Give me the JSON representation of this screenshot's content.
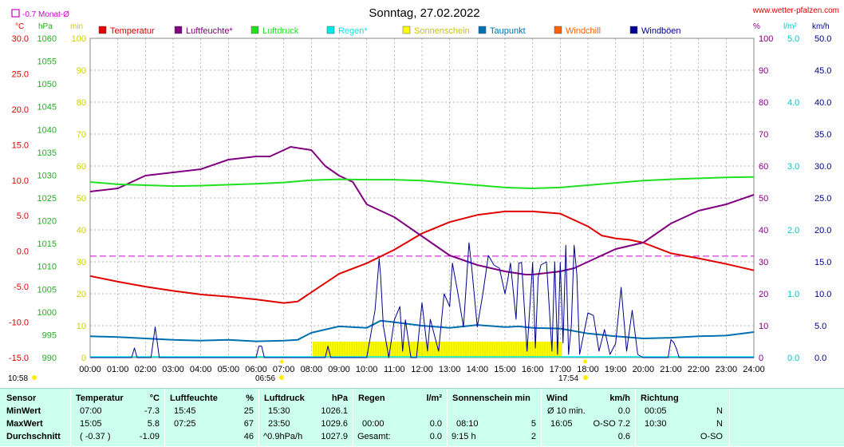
{
  "header": {
    "title": "Sonntag, 27.02.2022",
    "site": "www.wetter-pfalzen.com",
    "month_label": "-0.7 Monat-Ø"
  },
  "units": {
    "celsius": "°C",
    "hpa": "hPa",
    "min": "min",
    "percent": "%",
    "lm2": "l/m²",
    "kmh": "km/h"
  },
  "legend": [
    {
      "label": "Temperatur",
      "color": "#e00000"
    },
    {
      "label": "Luftfeuchte*",
      "color": "#800080"
    },
    {
      "label": "Luftdruck",
      "color": "#20e020"
    },
    {
      "label": "Regen*",
      "color": "#00e8e8"
    },
    {
      "label": "Sonnenschein",
      "color": "#ffff00"
    },
    {
      "label": "Taupunkt",
      "color": "#0070b0"
    },
    {
      "label": "Windchill",
      "color": "#ff6000"
    },
    {
      "label": "Windböen",
      "color": "#000090"
    }
  ],
  "axes": {
    "temp_ticks": [
      "30.0",
      "25.0",
      "20.0",
      "15.0",
      "10.0",
      "5.0",
      "0.0",
      "-5.0",
      "-10.0",
      "-15.0"
    ],
    "press_ticks": [
      "1060",
      "1055",
      "1050",
      "1045",
      "1040",
      "1035",
      "1030",
      "1025",
      "1020",
      "1015",
      "1010",
      "1005",
      "1000",
      "995",
      "990"
    ],
    "sun_ticks": [
      "100",
      "90",
      "80",
      "70",
      "60",
      "50",
      "40",
      "30",
      "20",
      "10",
      "0"
    ],
    "hum_ticks": [
      "100",
      "90",
      "80",
      "70",
      "60",
      "50",
      "40",
      "30",
      "20",
      "10",
      "0"
    ],
    "rain_ticks": [
      "5.0",
      "4.0",
      "3.0",
      "2.0",
      "1.0",
      "0.0"
    ],
    "wind_ticks": [
      "50.0",
      "45.0",
      "40.0",
      "35.0",
      "30.0",
      "25.0",
      "20.0",
      "15.0",
      "10.0",
      "5.0",
      "0.0"
    ],
    "x_ticks": [
      "00:00",
      "01:00",
      "02:00",
      "03:00",
      "04:00",
      "05:00",
      "06:00",
      "07:00",
      "08:00",
      "09:00",
      "10:00",
      "11:00",
      "12:00",
      "13:00",
      "14:00",
      "15:00",
      "16:00",
      "17:00",
      "18:00",
      "19:00",
      "20:00",
      "21:00",
      "22:00",
      "23:00",
      "24:00"
    ]
  },
  "markers": {
    "daylength": "10:58",
    "sunrise": "06:56",
    "sunset": "17:54"
  },
  "chart_data": {
    "type": "line",
    "title": "Sonntag, 27.02.2022",
    "x_range": [
      0,
      24
    ],
    "grid": true,
    "legend_position": "top",
    "month_avg_temp": -0.7,
    "series": [
      {
        "name": "Temperatur",
        "axis": "temp",
        "color": "#e00000",
        "x": [
          0,
          1,
          2,
          3,
          4,
          5,
          6,
          7,
          7.5,
          8,
          9,
          10,
          11,
          12,
          13,
          14,
          15,
          16,
          17,
          18,
          18.5,
          19,
          19.5,
          20,
          21,
          22,
          23,
          24
        ],
        "values": [
          -3.5,
          -4.3,
          -5.0,
          -5.6,
          -6.1,
          -6.4,
          -6.8,
          -7.3,
          -7.1,
          -5.8,
          -3.2,
          -1.7,
          0.2,
          2.5,
          4.1,
          5.1,
          5.6,
          5.6,
          5.3,
          3.5,
          2.2,
          1.8,
          1.6,
          1.2,
          -0.3,
          -1.0,
          -1.8,
          -2.7
        ]
      },
      {
        "name": "Luftfeuchte*",
        "axis": "hum",
        "color": "#800080",
        "x": [
          0,
          1,
          2,
          3,
          4,
          5,
          6,
          6.5,
          7,
          7.25,
          8,
          8.5,
          9,
          9.5,
          10,
          11,
          12,
          13,
          14,
          15,
          15.75,
          16,
          17,
          17.5,
          18,
          19,
          20,
          21,
          22,
          23,
          24
        ],
        "values": [
          52,
          53,
          57,
          58,
          59,
          62,
          63,
          63,
          65,
          66,
          65,
          60,
          57,
          55,
          48,
          44,
          38,
          32,
          29,
          27,
          26,
          26,
          27,
          28,
          30,
          34,
          36,
          42,
          46,
          48,
          51
        ]
      },
      {
        "name": "Luftdruck",
        "axis": "press",
        "color": "#20e020",
        "x": [
          0,
          1,
          2,
          3,
          4,
          5,
          6,
          7,
          8,
          9,
          10,
          11,
          12,
          13,
          14,
          15,
          16,
          17,
          18,
          19,
          20,
          21,
          22,
          23,
          23.83,
          24
        ],
        "values": [
          1028.5,
          1028.0,
          1027.8,
          1027.6,
          1027.7,
          1027.9,
          1028.1,
          1028.4,
          1028.9,
          1029.1,
          1029.0,
          1029.0,
          1028.8,
          1028.3,
          1027.8,
          1027.3,
          1027.1,
          1027.3,
          1027.8,
          1028.3,
          1028.8,
          1029.1,
          1029.3,
          1029.5,
          1029.6,
          1029.6
        ]
      },
      {
        "name": "Taupunkt",
        "axis": "temp",
        "color": "#0070b0",
        "x": [
          0,
          1,
          2,
          3,
          4,
          5,
          6,
          7,
          7.5,
          8,
          9,
          10,
          10.5,
          11,
          12,
          13,
          14,
          15,
          15.5,
          16,
          17,
          18,
          19,
          20,
          21,
          22,
          23,
          24
        ],
        "values": [
          -12.0,
          -12.1,
          -12.3,
          -12.5,
          -12.6,
          -12.5,
          -12.7,
          -12.6,
          -12.5,
          -11.5,
          -10.6,
          -10.8,
          -9.8,
          -10.0,
          -10.5,
          -10.8,
          -10.4,
          -10.7,
          -10.6,
          -10.8,
          -10.9,
          -11.6,
          -12.0,
          -12.3,
          -12.2,
          -12.0,
          -11.9,
          -11.4
        ]
      },
      {
        "name": "Windböen",
        "axis": "wind",
        "color": "#000090",
        "x": [
          0,
          1.5,
          1.6,
          1.7,
          2.2,
          2.35,
          2.5,
          6,
          6.1,
          6.2,
          6.3,
          8.5,
          8.6,
          8.7,
          10,
          10.3,
          10.45,
          10.5,
          10.6,
          10.8,
          11,
          11.2,
          11.3,
          11.4,
          11.6,
          11.8,
          12,
          12.2,
          12.3,
          12.6,
          12.8,
          13,
          13.1,
          13.3,
          13.5,
          13.7,
          13.8,
          14,
          14.2,
          14.4,
          14.6,
          14.8,
          15,
          15.1,
          15.2,
          15.4,
          15.5,
          15.6,
          15.8,
          16,
          16.1,
          16.2,
          16.3,
          16.5,
          16.7,
          16.8,
          16.9,
          17,
          17.1,
          17.2,
          17.3,
          17.4,
          17.5,
          17.6,
          17.7,
          18,
          18.2,
          18.4,
          18.6,
          18.8,
          19,
          19.2,
          19.4,
          19.6,
          19.8,
          20,
          20.9,
          21,
          21.1,
          21.2,
          21.3,
          24
        ],
        "values": [
          0,
          0,
          1.5,
          0,
          0,
          4.8,
          0,
          0,
          1.8,
          1.8,
          0,
          0,
          1.8,
          0,
          0,
          7.4,
          15.5,
          13,
          5,
          0,
          5.9,
          8,
          1,
          5.9,
          0,
          0,
          8.6,
          1,
          6,
          1,
          10,
          8,
          14.8,
          10,
          4.8,
          18,
          14,
          4.8,
          10,
          16,
          14.5,
          14,
          10,
          12.2,
          14.8,
          6,
          14.8,
          14.9,
          1,
          14.9,
          1.5,
          12.6,
          14.5,
          15,
          1,
          15,
          0.5,
          14.9,
          2.3,
          17.6,
          0.5,
          5,
          17.6,
          13,
          0.5,
          7,
          6.6,
          1,
          4.4,
          0.5,
          2.2,
          11,
          1,
          7.4,
          0.5,
          0,
          0,
          2.8,
          2.4,
          1.4,
          0,
          0
        ]
      }
    ],
    "sunshine": {
      "name": "Sonnenschein",
      "axis": "sun",
      "color": "#ffff00",
      "periods": [
        [
          8.05,
          12.0,
          5
        ],
        [
          12.0,
          17.05,
          5
        ]
      ]
    }
  },
  "stats": {
    "headers": {
      "sensor": "Sensor",
      "temperature": "Temperatur",
      "temp_unit": "°C",
      "humidity": "Luftfeuchte",
      "hum_unit": "%",
      "pressure": "Luftdruck",
      "press_unit": "hPa",
      "rain": "Regen",
      "rain_unit": "l/m²",
      "sun": "Sonnenschein min",
      "wind": "Wind",
      "wind_unit": "km/h",
      "direction": "Richtung"
    },
    "rows": [
      {
        "label": "MinWert",
        "temp_time": "07:00",
        "temp_val": "-7.3",
        "hum_time": "15:45",
        "hum_val": "25",
        "press_time": "15:30",
        "press_val": "1026.1",
        "rain_time": "",
        "rain_val": "",
        "sun_time": "",
        "sun_val": "",
        "wind_time": "Ø 10 min.",
        "wind_val": "0.0",
        "dir_time": "00:05",
        "dir_val": "N"
      },
      {
        "label": "MaxWert",
        "temp_time": "15:05",
        "temp_val": "5.8",
        "hum_time": "07:25",
        "hum_val": "67",
        "press_time": "23:50",
        "press_val": "1029.6",
        "rain_time": "00:00",
        "rain_val": "0.0",
        "sun_time": "08:10",
        "sun_val": "5",
        "wind_time": "16:05",
        "wind_val": "O-SO 7.2",
        "dir_time": "10:30",
        "dir_val": "N"
      },
      {
        "label": "Durchschnitt",
        "temp_time": "( -0.37 )",
        "temp_val": "-1.09",
        "hum_time": "",
        "hum_val": "46",
        "press_time": "^0.9hPa/h",
        "press_val": "1027.9",
        "rain_time": "Gesamt:",
        "rain_val": "0.0",
        "sun_time": "9:15 h",
        "sun_val": "2",
        "wind_time": "",
        "wind_val": "0.6",
        "dir_time": "",
        "dir_val": "O-SO"
      }
    ]
  }
}
